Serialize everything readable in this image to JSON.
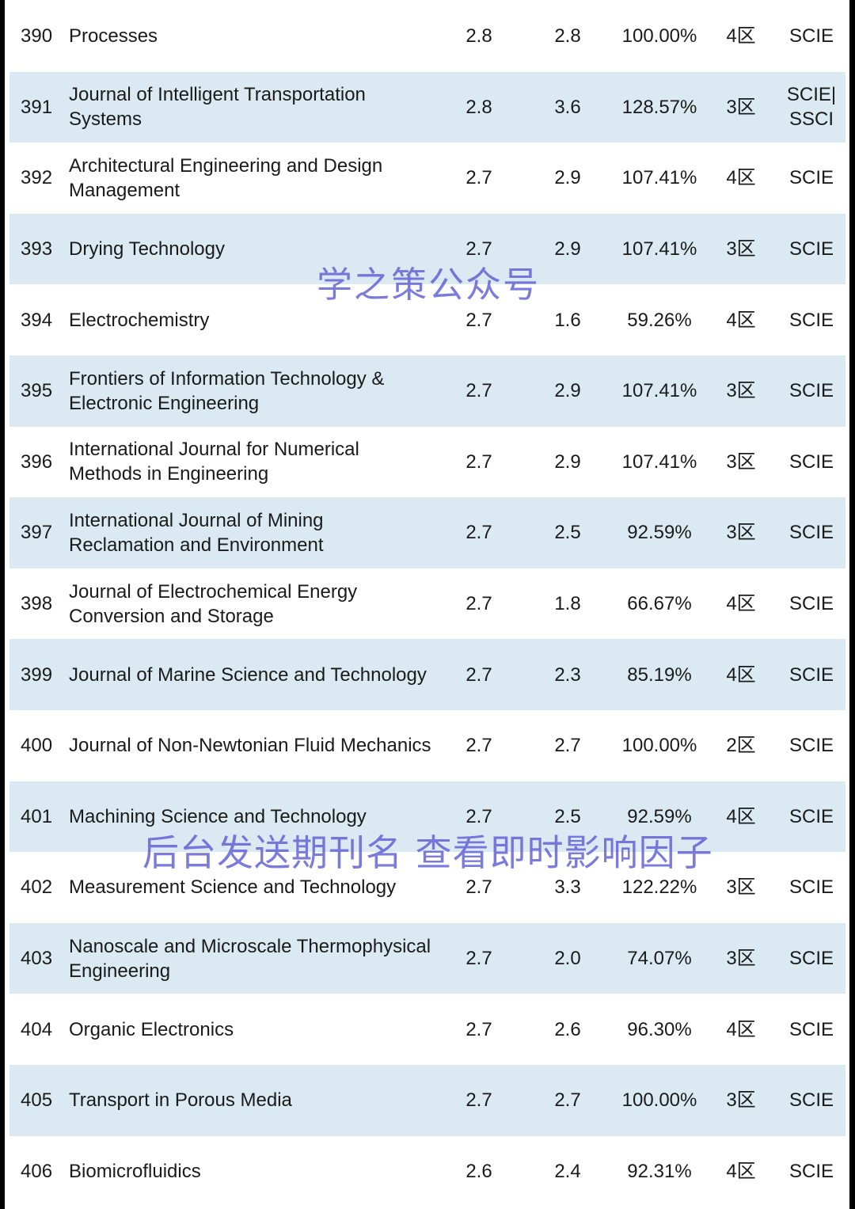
{
  "rows": [
    {
      "rank": "390",
      "name": "Processes",
      "v1": "2.8",
      "v2": "2.8",
      "pct": "100.00%",
      "zone": "4区",
      "index": "SCIE"
    },
    {
      "rank": "391",
      "name": "Journal of Intelligent Transportation Systems",
      "v1": "2.8",
      "v2": "3.6",
      "pct": "128.57%",
      "zone": "3区",
      "index": "SCIE| SSCI"
    },
    {
      "rank": "392",
      "name": "Architectural Engineering and Design Management",
      "v1": "2.7",
      "v2": "2.9",
      "pct": "107.41%",
      "zone": "4区",
      "index": "SCIE"
    },
    {
      "rank": "393",
      "name": "Drying Technology",
      "v1": "2.7",
      "v2": "2.9",
      "pct": "107.41%",
      "zone": "3区",
      "index": "SCIE"
    },
    {
      "rank": "394",
      "name": "Electrochemistry",
      "v1": "2.7",
      "v2": "1.6",
      "pct": "59.26%",
      "zone": "4区",
      "index": "SCIE"
    },
    {
      "rank": "395",
      "name": "Frontiers of Information Technology & Electronic Engineering",
      "v1": "2.7",
      "v2": "2.9",
      "pct": "107.41%",
      "zone": "3区",
      "index": "SCIE"
    },
    {
      "rank": "396",
      "name": "International Journal for Numerical Methods in Engineering",
      "v1": "2.7",
      "v2": "2.9",
      "pct": "107.41%",
      "zone": "3区",
      "index": "SCIE"
    },
    {
      "rank": "397",
      "name": "International Journal of Mining Reclamation and Environment",
      "v1": "2.7",
      "v2": "2.5",
      "pct": "92.59%",
      "zone": "3区",
      "index": "SCIE"
    },
    {
      "rank": "398",
      "name": "Journal of Electrochemical Energy Conversion and Storage",
      "v1": "2.7",
      "v2": "1.8",
      "pct": "66.67%",
      "zone": "4区",
      "index": "SCIE"
    },
    {
      "rank": "399",
      "name": "Journal of Marine Science and Technology",
      "v1": "2.7",
      "v2": "2.3",
      "pct": "85.19%",
      "zone": "4区",
      "index": "SCIE"
    },
    {
      "rank": "400",
      "name": "Journal of Non-Newtonian Fluid Mechanics",
      "v1": "2.7",
      "v2": "2.7",
      "pct": "100.00%",
      "zone": "2区",
      "index": "SCIE"
    },
    {
      "rank": "401",
      "name": "Machining Science and Technology",
      "v1": "2.7",
      "v2": "2.5",
      "pct": "92.59%",
      "zone": "4区",
      "index": "SCIE"
    },
    {
      "rank": "402",
      "name": "Measurement Science and Technology",
      "v1": "2.7",
      "v2": "3.3",
      "pct": "122.22%",
      "zone": "3区",
      "index": "SCIE"
    },
    {
      "rank": "403",
      "name": "Nanoscale and Microscale Thermophysical Engineering",
      "v1": "2.7",
      "v2": "2.0",
      "pct": "74.07%",
      "zone": "3区",
      "index": "SCIE"
    },
    {
      "rank": "404",
      "name": "Organic Electronics",
      "v1": "2.7",
      "v2": "2.6",
      "pct": "96.30%",
      "zone": "4区",
      "index": "SCIE"
    },
    {
      "rank": "405",
      "name": "Transport in Porous Media",
      "v1": "2.7",
      "v2": "2.7",
      "pct": "100.00%",
      "zone": "3区",
      "index": "SCIE"
    },
    {
      "rank": "406",
      "name": "Biomicrofluidics",
      "v1": "2.6",
      "v2": "2.4",
      "pct": "92.31%",
      "zone": "4区",
      "index": "SCIE"
    }
  ],
  "watermarks": {
    "top": "学之策公众号",
    "bottom": "后台发送期刊名 查看即时影响因子"
  },
  "colors": {
    "shaded_row": "#dbeaf2",
    "watermark": "#5a5ad2"
  }
}
